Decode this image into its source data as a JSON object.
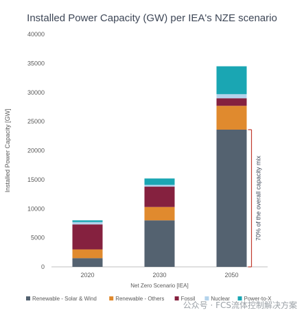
{
  "chart_data": {
    "type": "bar",
    "stacked": true,
    "title": "Installed Power Capacity (GW) per IEA's NZE scenario",
    "xlabel": "Net Zero Scenario [IEA]",
    "ylabel": "Installed Power Capacity [GW]",
    "ylim": [
      0,
      40000
    ],
    "yticks": [
      0,
      5000,
      10000,
      15000,
      20000,
      25000,
      30000,
      35000,
      40000
    ],
    "grid": false,
    "legend_position": "bottom",
    "categories": [
      "2020",
      "2030",
      "2050"
    ],
    "series": [
      {
        "name": "Renewable - Solar & Wind",
        "color": "#546270",
        "values": [
          1500,
          8000,
          23600
        ]
      },
      {
        "name": "Renewable - Others",
        "color": "#e08a2e",
        "values": [
          1500,
          2300,
          4100
        ]
      },
      {
        "name": "Fossil",
        "color": "#85213f",
        "values": [
          4300,
          3500,
          1300
        ]
      },
      {
        "name": "Nuclear",
        "color": "#b4d3ec",
        "values": [
          400,
          300,
          700
        ]
      },
      {
        "name": "Power-to-X",
        "color": "#1aa6b3",
        "values": [
          300,
          1100,
          4800
        ]
      }
    ],
    "annotation": {
      "text": "70% of the overall capacity mix",
      "color": "#c0392b",
      "range": [
        0,
        23600
      ],
      "category": "2050"
    }
  },
  "watermark": "公众号 · FCS流体控制解决方案"
}
